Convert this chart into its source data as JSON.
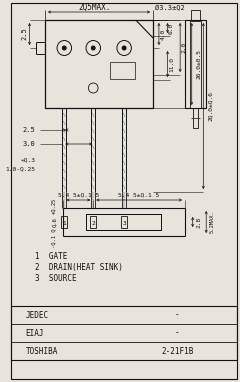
{
  "bg_color": "#e8e4dc",
  "line_color": "#111111",
  "text_color": "#111111",
  "footer_rows": [
    [
      "JEDEC",
      "-"
    ],
    [
      "EIAJ",
      "-"
    ],
    [
      "TOSHIBA",
      "2-21F1B"
    ]
  ],
  "labels": [
    "1  GATE",
    "2  DRAIN(HEAT SINK)",
    "3  SOURCE"
  ],
  "dim_top_width": "2Q5MAX.",
  "dim_hole_diam": "Ø3.3±Q2",
  "dim_left_25": "2.5",
  "dim_right_60": "6.0",
  "dim_right_40": "4.0",
  "dim_right_110": "11.0",
  "dim_right_20": "2.0",
  "dim_right_260": "26.0±0.5",
  "dim_right_200": "2Q.0±Q.6",
  "dim_pin_25": "2.5",
  "dim_pin_30": "3.0",
  "dim_pin_thick1": "+Q.3",
  "dim_pin_thick2": "1.0-Q.25",
  "dim_bot_w1": "5.4 5±Q.1 5",
  "dim_bot_w2": "5.4 5±Q.1 5",
  "dim_bot_h1": "2.8",
  "dim_bot_h2": "5.2MAX.",
  "dim_bot_left1": "+Q.25",
  "dim_bot_left2": "Q.6",
  "dim_bot_left3": "-Q.1 Q"
}
